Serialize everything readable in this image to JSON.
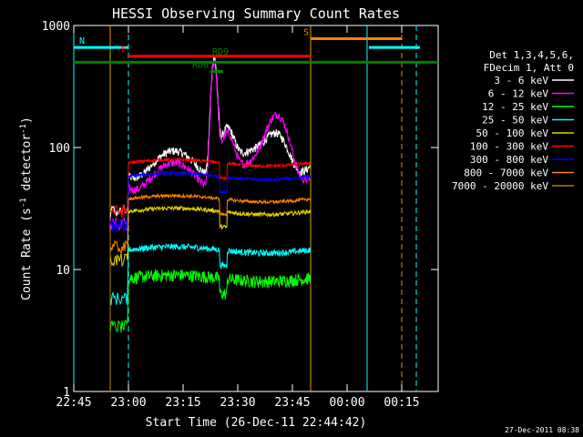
{
  "chart_data": {
    "type": "line",
    "title": "HESSI Observing Summary Count Rates",
    "xlabel": "Start Time (26-Dec-11 22:44:42)",
    "ylabel_main": "Count Rate (s",
    "ylabel_sup": "-1",
    "ylabel_rest": " detector",
    "ylabel_close": ")",
    "x_range_min": [
      0,
      100
    ],
    "y_range": [
      1,
      1000
    ],
    "y_scale": "log",
    "x_ticks": [
      {
        "label": "22:45",
        "min": 0
      },
      {
        "label": "23:00",
        "min": 15
      },
      {
        "label": "23:15",
        "min": 30
      },
      {
        "label": "23:30",
        "min": 45
      },
      {
        "label": "23:45",
        "min": 60
      },
      {
        "label": "00:00",
        "min": 75
      },
      {
        "label": "00:15",
        "min": 90
      }
    ],
    "y_ticks": [
      {
        "label": "1",
        "value": 1
      },
      {
        "label": "10",
        "value": 10
      },
      {
        "label": "100",
        "value": 100
      },
      {
        "label": "1000",
        "value": 1000
      }
    ],
    "legend_header": [
      "Det 1,3,4,5,6,",
      "FDecim 1, Att 0"
    ],
    "series": [
      {
        "name": "3 - 6 keV",
        "color": "#ffffff",
        "base": 75,
        "noise": 0.08,
        "peak": 480
      },
      {
        "name": "6 - 12 keV",
        "color": "#ff00ff",
        "base": 60,
        "noise": 0.08,
        "peak": 450
      },
      {
        "name": "12 - 25 keV",
        "color": "#00ff00",
        "base": 8.5,
        "noise": 0.12,
        "peak": 0
      },
      {
        "name": "25 - 50 keV",
        "color": "#00ffff",
        "base": 14.5,
        "noise": 0.06,
        "peak": 0
      },
      {
        "name": "50 - 100 keV",
        "color": "#e0d000",
        "base": 30,
        "noise": 0.04,
        "peak": 0
      },
      {
        "name": "100 - 300 keV",
        "color": "#ff0000",
        "base": 75,
        "noise": 0.03,
        "peak": 0
      },
      {
        "name": "300 - 800 keV",
        "color": "#0000ff",
        "base": 58,
        "noise": 0.03,
        "peak": 0
      },
      {
        "name": "800 - 7000 keV",
        "color": "#ff8000",
        "base": 38,
        "noise": 0.03,
        "peak": 0
      },
      {
        "name": "7000 - 20000 keV",
        "color": "#b08000",
        "base": 1,
        "noise": 0,
        "peak": 0
      }
    ],
    "flags": [
      {
        "label": "N",
        "color": "#00ffff",
        "segments": [
          [
            0,
            15
          ],
          [
            81,
            95
          ]
        ],
        "y": 660
      },
      {
        "label": "F",
        "color": "#ff0000",
        "segments": [
          [
            15,
            65
          ]
        ],
        "y": 560
      },
      {
        "label": "S",
        "color": "#ff8000",
        "segments": [
          [
            65,
            90
          ]
        ],
        "y": 780
      },
      {
        "label": "RD6",
        "color": "#008000",
        "segments": [
          [
            37.5,
            41
          ]
        ],
        "y": 420
      },
      {
        "label": "RD9",
        "color": "#008000",
        "segments": [],
        "y": 540
      },
      {
        "label": "",
        "color": "#008000",
        "segments": [
          [
            0,
            100
          ]
        ],
        "y": 500
      }
    ],
    "vlines": [
      {
        "min": 0,
        "color": "#00ffff",
        "style": "solid"
      },
      {
        "min": 10,
        "color": "#e0a000",
        "style": "solid"
      },
      {
        "min": 15,
        "color": "#00ffff",
        "style": "dashed"
      },
      {
        "min": 65,
        "color": "#e0a000",
        "style": "solid"
      },
      {
        "min": 80.5,
        "color": "#00ffff",
        "style": "solid"
      },
      {
        "min": 90,
        "color": "#ff8000",
        "style": "dashed"
      },
      {
        "min": 94,
        "color": "#00ffff",
        "style": "dashed"
      }
    ]
  },
  "footer_timestamp": "27-Dec-2011 08:38"
}
